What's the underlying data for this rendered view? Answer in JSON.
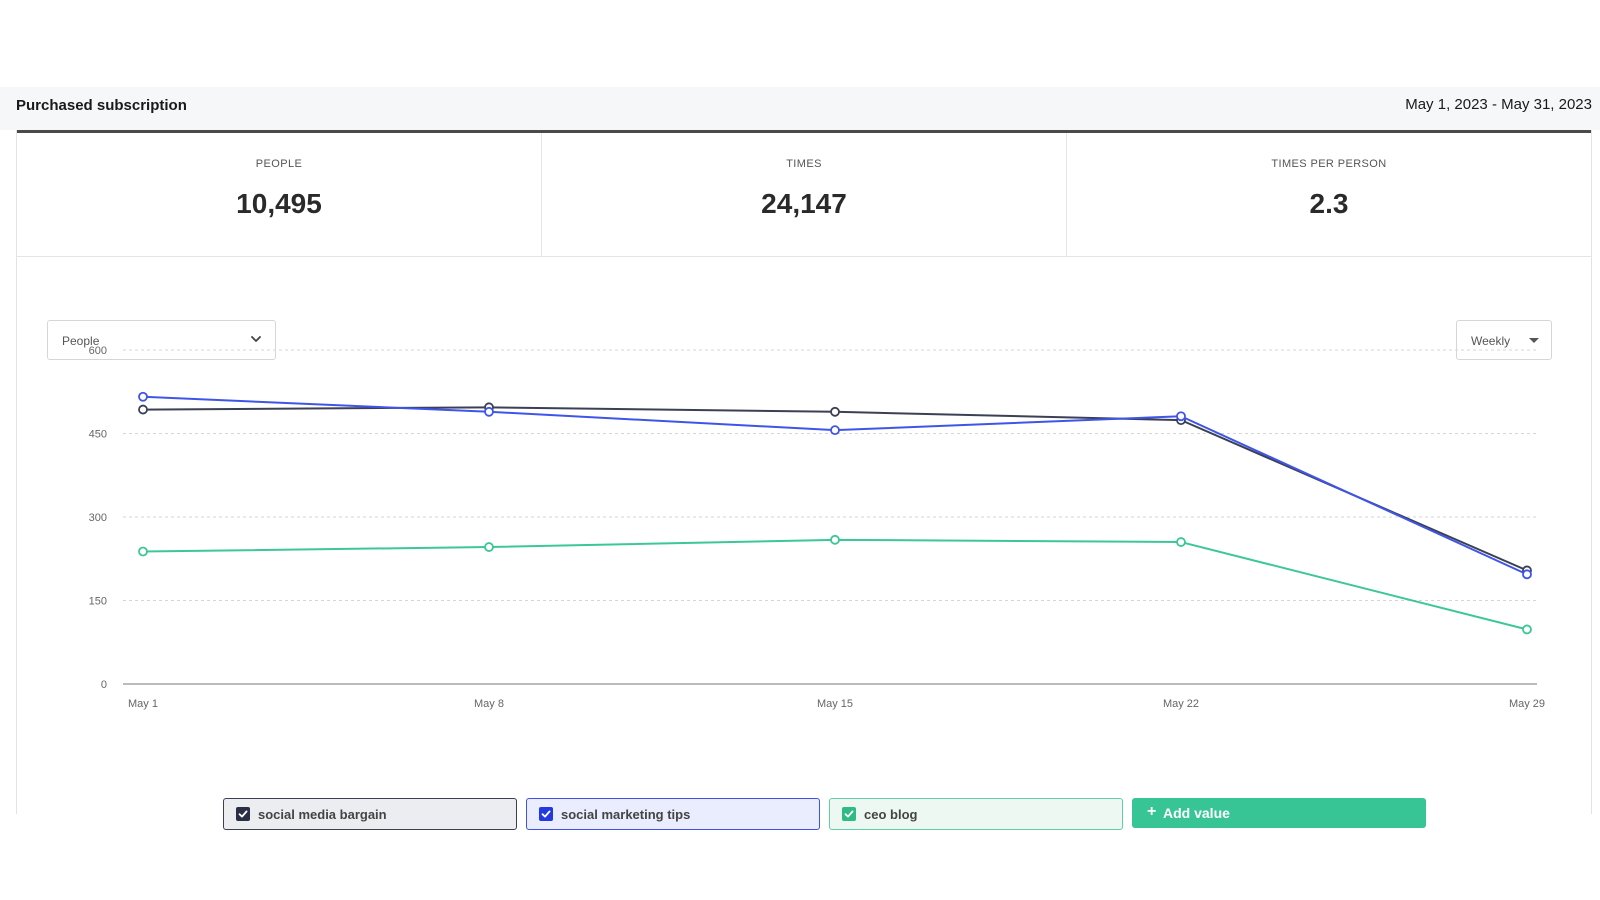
{
  "header": {
    "title": "Purchased subscription",
    "date_range": "May 1, 2023 - May 31, 2023"
  },
  "kpis": [
    {
      "label": "PEOPLE",
      "value": "10,495"
    },
    {
      "label": "TIMES",
      "value": "24,147"
    },
    {
      "label": "TIMES PER PERSON",
      "value": "2.3"
    }
  ],
  "controls": {
    "metric_select": "People",
    "period_select": "Weekly"
  },
  "colors": {
    "series_dark": "#3b4054",
    "series_blue": "#3f55e8",
    "series_green": "#3cc797",
    "add_button": "#37c596",
    "grid": "#d5d5d5"
  },
  "chart_data": {
    "type": "line",
    "x": [
      "May 1",
      "May 8",
      "May 15",
      "May 22",
      "May 29"
    ],
    "yticks": [
      "0",
      "150",
      "300",
      "450",
      "600"
    ],
    "ylim": [
      0,
      600
    ],
    "grid": true,
    "series": [
      {
        "name": "social media bargain",
        "color": "#3b4054",
        "values": [
          493,
          497,
          489,
          474,
          204
        ]
      },
      {
        "name": "social marketing tips",
        "color": "#3f55e8",
        "values": [
          516,
          489,
          456,
          481,
          197
        ]
      },
      {
        "name": "ceo blog",
        "color": "#3cc797",
        "values": [
          238,
          246,
          259,
          255,
          98
        ]
      }
    ]
  },
  "legend": {
    "add_label": "Add value",
    "add_icon": "plus-icon"
  }
}
